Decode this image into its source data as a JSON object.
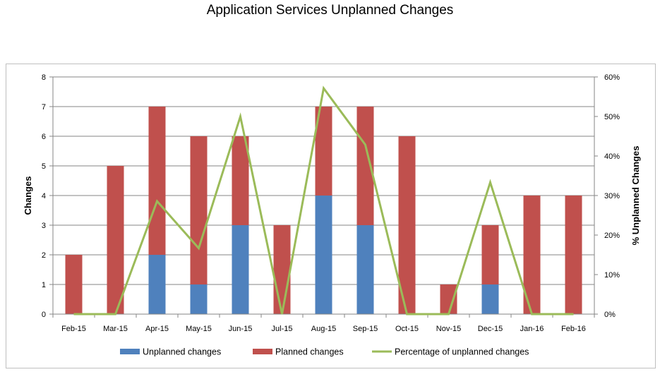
{
  "chart_data": {
    "type": "bar",
    "title": "Application Services Unplanned Changes",
    "categories": [
      "Feb-15",
      "Mar-15",
      "Apr-15",
      "May-15",
      "Jun-15",
      "Jul-15",
      "Aug-15",
      "Sep-15",
      "Oct-15",
      "Nov-15",
      "Dec-15",
      "Jan-16",
      "Feb-16"
    ],
    "series": [
      {
        "name": "Unplanned changes",
        "type": "bar",
        "stack": "changes",
        "axis": "left",
        "color": "#4f81bd",
        "values": [
          0,
          0,
          2,
          1,
          3,
          0,
          4,
          3,
          0,
          0,
          1,
          0,
          0
        ]
      },
      {
        "name": "Planned changes",
        "type": "bar",
        "stack": "changes",
        "axis": "left",
        "color": "#c0504d",
        "values": [
          2,
          5,
          5,
          5,
          3,
          3,
          3,
          4,
          6,
          1,
          2,
          4,
          4
        ]
      },
      {
        "name": "Percentage of unplanned changes",
        "type": "line",
        "axis": "right",
        "color": "#9bbb59",
        "values": [
          0,
          0,
          0.2857,
          0.1667,
          0.5,
          0,
          0.5714,
          0.4286,
          0,
          0,
          0.3333,
          0,
          0
        ]
      }
    ],
    "ylabel": "Changes",
    "ylim": [
      0,
      8
    ],
    "yticks": [
      "0",
      "1",
      "2",
      "3",
      "4",
      "5",
      "6",
      "7",
      "8"
    ],
    "y2label": "% Unplanned Changes",
    "y2lim": [
      0,
      0.6
    ],
    "y2ticks": [
      "0%",
      "10%",
      "20%",
      "30%",
      "40%",
      "50%",
      "60%"
    ],
    "grid": true,
    "legend_position": "bottom"
  }
}
